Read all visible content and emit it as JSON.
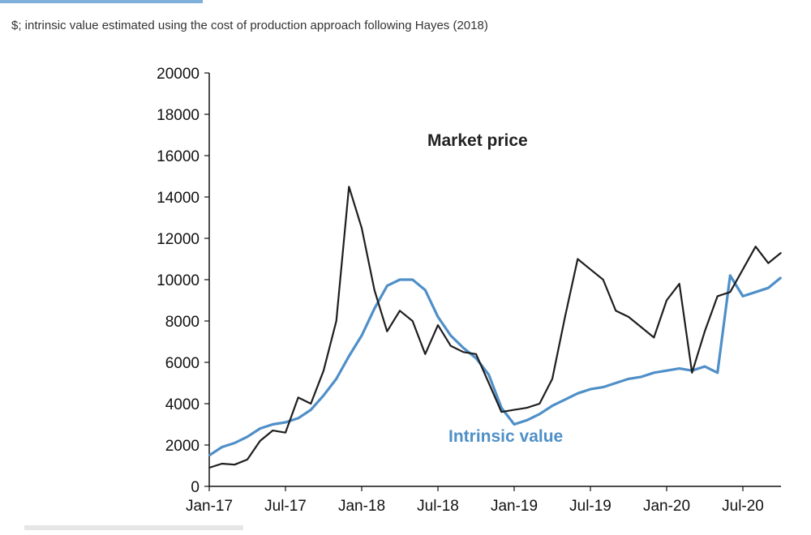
{
  "subtitle": "$; intrinsic value estimated using the cost of production approach following Hayes (2018)",
  "colors": {
    "market": "#1e1e1e",
    "intrinsic": "#4f8fc8",
    "axis": "#111111"
  },
  "chart_data": {
    "type": "line",
    "title": "",
    "xlabel": "",
    "ylabel": "",
    "ylim": [
      0,
      20000
    ],
    "yticks": [
      0,
      2000,
      4000,
      6000,
      8000,
      10000,
      12000,
      14000,
      16000,
      18000,
      20000
    ],
    "xlim": [
      "2017-01",
      "2020-10"
    ],
    "xticks": [
      "Jan-17",
      "Jul-17",
      "Jan-18",
      "Jul-18",
      "Jan-19",
      "Jul-19",
      "Jan-20",
      "Jul-20"
    ],
    "grid": false,
    "legend": "inline annotations",
    "annotations": [
      {
        "text": "Market price",
        "series": "Market price"
      },
      {
        "text": "Intrinsic value",
        "series": "Intrinsic value"
      }
    ],
    "series": [
      {
        "name": "Market price",
        "x": [
          "2017-01",
          "2017-02",
          "2017-03",
          "2017-04",
          "2017-05",
          "2017-06",
          "2017-07",
          "2017-08",
          "2017-09",
          "2017-10",
          "2017-11",
          "2017-12",
          "2018-01",
          "2018-02",
          "2018-03",
          "2018-04",
          "2018-05",
          "2018-06",
          "2018-07",
          "2018-08",
          "2018-09",
          "2018-10",
          "2018-11",
          "2018-12",
          "2019-01",
          "2019-02",
          "2019-03",
          "2019-04",
          "2019-05",
          "2019-06",
          "2019-07",
          "2019-08",
          "2019-09",
          "2019-10",
          "2019-11",
          "2019-12",
          "2020-01",
          "2020-02",
          "2020-03",
          "2020-04",
          "2020-05",
          "2020-06",
          "2020-07",
          "2020-08",
          "2020-09",
          "2020-10"
        ],
        "values": [
          900,
          1100,
          1050,
          1300,
          2200,
          2700,
          2600,
          4300,
          4000,
          5600,
          8000,
          14500,
          12500,
          9500,
          7500,
          8500,
          8000,
          6400,
          7800,
          6800,
          6500,
          6400,
          5000,
          3600,
          3700,
          3800,
          4000,
          5200,
          8200,
          11000,
          10500,
          10000,
          8500,
          8200,
          7700,
          7200,
          9000,
          9800,
          5500,
          7500,
          9200,
          9400,
          10500,
          11600,
          10800,
          11300
        ]
      },
      {
        "name": "Intrinsic value",
        "x": [
          "2017-01",
          "2017-02",
          "2017-03",
          "2017-04",
          "2017-05",
          "2017-06",
          "2017-07",
          "2017-08",
          "2017-09",
          "2017-10",
          "2017-11",
          "2017-12",
          "2018-01",
          "2018-02",
          "2018-03",
          "2018-04",
          "2018-05",
          "2018-06",
          "2018-07",
          "2018-08",
          "2018-09",
          "2018-10",
          "2018-11",
          "2018-12",
          "2019-01",
          "2019-02",
          "2019-03",
          "2019-04",
          "2019-05",
          "2019-06",
          "2019-07",
          "2019-08",
          "2019-09",
          "2019-10",
          "2019-11",
          "2019-12",
          "2020-01",
          "2020-02",
          "2020-03",
          "2020-04",
          "2020-05",
          "2020-06",
          "2020-07",
          "2020-08",
          "2020-09",
          "2020-10"
        ],
        "values": [
          1500,
          1900,
          2100,
          2400,
          2800,
          3000,
          3100,
          3300,
          3700,
          4400,
          5200,
          6300,
          7300,
          8600,
          9700,
          10000,
          10000,
          9500,
          8200,
          7300,
          6700,
          6200,
          5400,
          3800,
          3000,
          3200,
          3500,
          3900,
          4200,
          4500,
          4700,
          4800,
          5000,
          5200,
          5300,
          5500,
          5600,
          5700,
          5600,
          5800,
          5500,
          10200,
          9200,
          9400,
          9600,
          10100
        ]
      }
    ]
  }
}
